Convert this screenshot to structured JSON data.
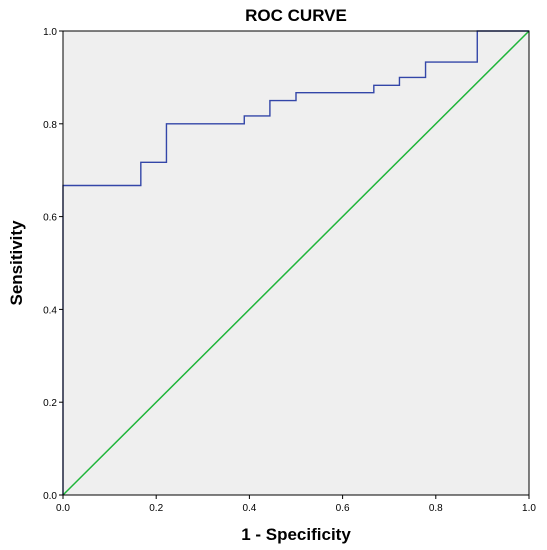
{
  "chart_data": {
    "type": "line",
    "title": "ROC CURVE",
    "xlabel": "1 - Specificity",
    "ylabel": "Sensitivity",
    "xlim": [
      0,
      1
    ],
    "ylim": [
      0,
      1
    ],
    "x_ticks": [
      "0.0",
      "0.2",
      "0.4",
      "0.6",
      "0.8",
      "1.0"
    ],
    "y_ticks": [
      "0.0",
      "0.2",
      "0.4",
      "0.6",
      "0.8",
      "1.0"
    ],
    "grid": false,
    "legend": "none",
    "series": [
      {
        "kind": "step",
        "color": "#3346a8",
        "points": [
          [
            0.0,
            0.0
          ],
          [
            0.0,
            0.667
          ],
          [
            0.167,
            0.667
          ],
          [
            0.167,
            0.717
          ],
          [
            0.222,
            0.717
          ],
          [
            0.222,
            0.8
          ],
          [
            0.389,
            0.8
          ],
          [
            0.389,
            0.817
          ],
          [
            0.444,
            0.817
          ],
          [
            0.444,
            0.85
          ],
          [
            0.5,
            0.85
          ],
          [
            0.5,
            0.867
          ],
          [
            0.667,
            0.867
          ],
          [
            0.667,
            0.883
          ],
          [
            0.722,
            0.883
          ],
          [
            0.722,
            0.9
          ],
          [
            0.778,
            0.9
          ],
          [
            0.778,
            0.933
          ],
          [
            0.889,
            0.933
          ],
          [
            0.889,
            1.0
          ],
          [
            1.0,
            1.0
          ]
        ]
      },
      {
        "kind": "reference",
        "color": "#1fb53a",
        "points": [
          [
            0,
            0
          ],
          [
            1,
            1
          ]
        ]
      }
    ]
  },
  "colors": {
    "plot_background": "#efefef",
    "frame": "#000000",
    "roc_line": "#3346a8",
    "reference_line": "#1fb53a"
  }
}
